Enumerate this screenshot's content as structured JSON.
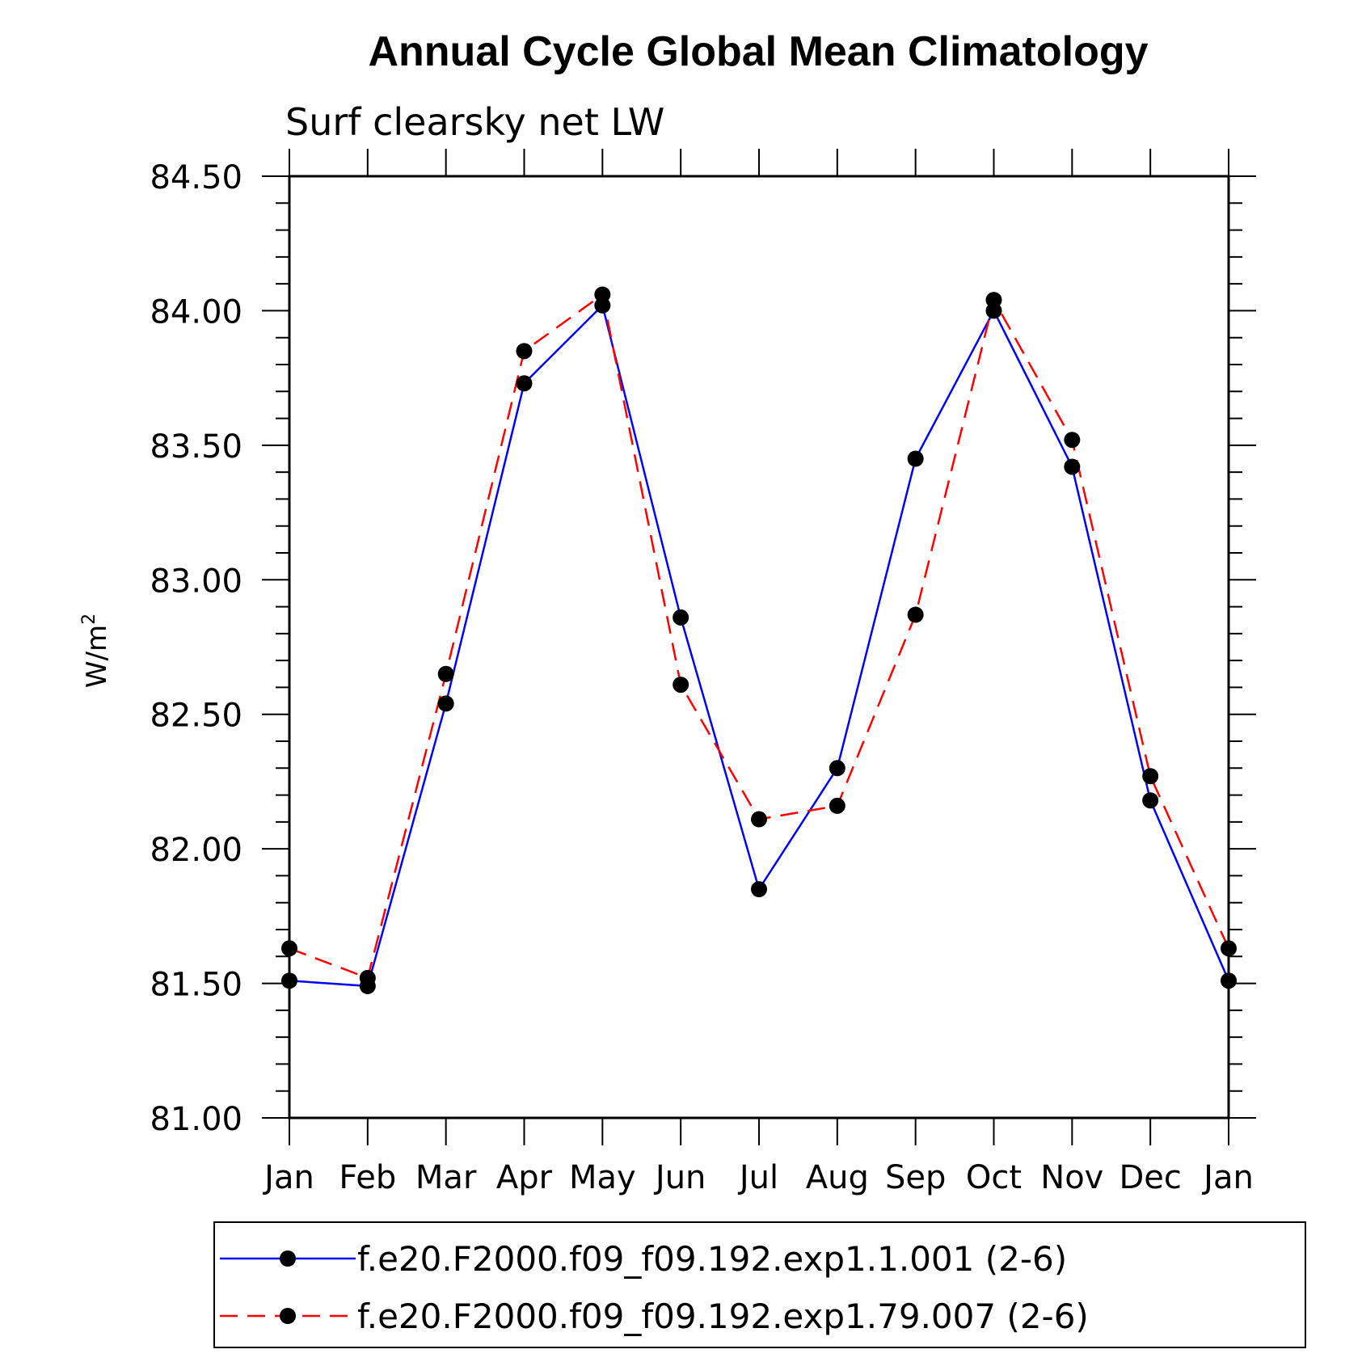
{
  "chart_data": {
    "type": "line",
    "title": "Annual Cycle Global Mean Climatology",
    "subtitle": "Surf clearsky net LW",
    "ylabel_base": "W/m",
    "ylabel_sup": "2",
    "categories": [
      "Jan",
      "Feb",
      "Mar",
      "Apr",
      "May",
      "Jun",
      "Jul",
      "Aug",
      "Sep",
      "Oct",
      "Nov",
      "Dec",
      "Jan"
    ],
    "ylim": [
      81.0,
      84.5
    ],
    "yticks": [
      "81.00",
      "81.50",
      "82.00",
      "82.50",
      "83.00",
      "83.50",
      "84.00",
      "84.50"
    ],
    "series": [
      {
        "name": "f.e20.F2000.f09_f09.192.exp1.1.001 (2-6)",
        "color": "#0000ff",
        "dash": "solid",
        "values": [
          81.51,
          81.49,
          82.54,
          83.73,
          84.02,
          82.86,
          81.85,
          82.3,
          83.45,
          84.0,
          83.42,
          82.18,
          81.51
        ]
      },
      {
        "name": "f.e20.F2000.f09_f09.192.exp1.79.007 (2-6)",
        "color": "#ff0000",
        "dash": "dashed",
        "values": [
          81.63,
          81.52,
          82.65,
          83.85,
          84.06,
          82.61,
          82.11,
          82.16,
          82.87,
          84.04,
          83.52,
          82.27,
          81.63
        ]
      }
    ],
    "grid": false,
    "legend_position": "bottom"
  }
}
